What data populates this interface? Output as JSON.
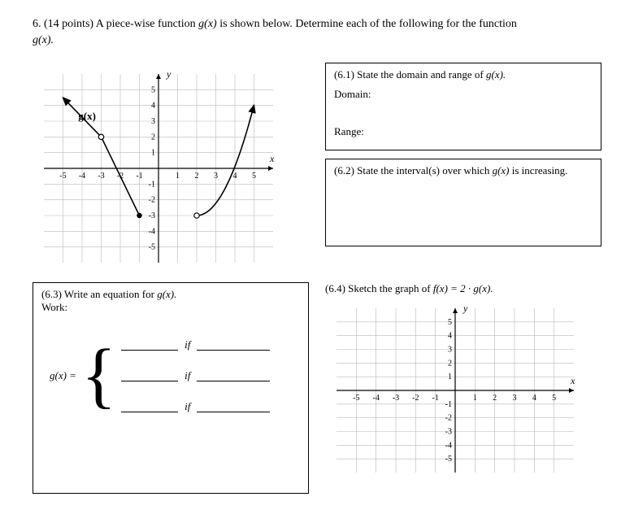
{
  "question": {
    "number": "6.",
    "points": "(14 points)",
    "text": "A piece-wise function",
    "func": "g(x)",
    "text2": "is shown below. Determine each of the following for the function",
    "func2": "g(x).",
    "full_line": "6. (14 points) A piece-wise function g(x) is shown below. Determine each of the following for the function g(x)."
  },
  "chart": {
    "axis_label_x": "x",
    "axis_label_y": "y",
    "gx_label": "g(x)",
    "x_ticks": [
      -5,
      -4,
      -3,
      -2,
      -1,
      1,
      2,
      3,
      4,
      5
    ],
    "y_ticks": [
      -5,
      -4,
      -3,
      -2,
      -1,
      1,
      2,
      3,
      4,
      5
    ],
    "xlim": [
      -6,
      6
    ],
    "ylim": [
      -6,
      6
    ],
    "grid_color": "#b9b9b9",
    "axis_color": "#000000",
    "curve_color": "#000000",
    "line_width": 1.2,
    "point_radius": 3.2,
    "segments": [
      {
        "type": "line",
        "from": [
          -5,
          4.5
        ],
        "to": [
          -3,
          2
        ],
        "arrow_start": true,
        "closed_end": true
      },
      {
        "type": "line",
        "from": [
          -3,
          2
        ],
        "to": [
          -1,
          -3
        ],
        "closed_start": false,
        "closed_end": true
      },
      {
        "type": "parabola",
        "vertex": [
          2,
          -3
        ],
        "from_x": 2,
        "to_x": 5,
        "a": 0.78,
        "open_start": true,
        "arrow_end": true
      }
    ],
    "open_points": [
      [
        -3,
        2
      ],
      [
        2,
        -3
      ]
    ],
    "closed_points": [
      [
        -3,
        2
      ],
      [
        -1,
        -3
      ]
    ]
  },
  "part61": {
    "label": "(6.1) State the domain and range of",
    "func": "g(x).",
    "domain_label": "Domain:",
    "range_label": "Range:"
  },
  "part62": {
    "label": "(6.2) State the interval(s) over which",
    "func": "g(x)",
    "tail": "is increasing."
  },
  "part63": {
    "label": "(6.3) Write an equation for",
    "func": "g(x).",
    "work": "Work:",
    "gx_eq": "g(x) =",
    "if": "if"
  },
  "part64": {
    "label": "(6.4) Sketch the graph of",
    "func": "f(x) = 2 · g(x).",
    "axis_label_x": "x",
    "axis_label_y": "y",
    "x_ticks": [
      -5,
      -4,
      -3,
      -2,
      -1,
      1,
      2,
      3,
      4,
      5
    ],
    "y_ticks": [
      -5,
      -4,
      -3,
      -2,
      -1,
      1,
      2,
      3,
      4,
      5
    ],
    "xlim": [
      -6,
      6
    ],
    "ylim": [
      -6,
      6
    ],
    "grid_color": "#b9b9b9",
    "axis_color": "#000000"
  }
}
